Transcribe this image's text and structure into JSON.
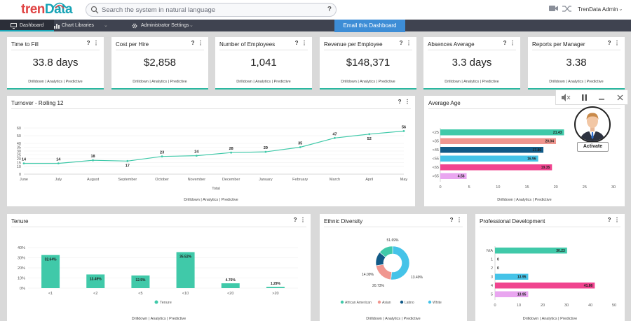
{
  "header": {
    "logo_prefix": "tren",
    "logo_suffix": "Data",
    "search_placeholder": "Search the system in natural language",
    "search_help": "?",
    "user": "TrenData Admin"
  },
  "nav": {
    "items": [
      {
        "label": "Dashboard"
      },
      {
        "label": "Chart Libraries"
      },
      {
        "label": "Administrator Settings"
      }
    ],
    "email_button": "Email this Dashboard"
  },
  "links": {
    "a": "Drilldown",
    "b": "Analytics",
    "c": "Predictive",
    "sep": "|"
  },
  "kpis": [
    {
      "title": "Time to Fill",
      "value": "33.8 days"
    },
    {
      "title": "Cost per Hire",
      "value": "$2,858"
    },
    {
      "title": "Number of Employees",
      "value": "1,041"
    },
    {
      "title": "Revenue per Employee",
      "value": "$148,371"
    },
    {
      "title": "Absences Average",
      "value": "3.3 days"
    },
    {
      "title": "Reports per Manager",
      "value": "3.38"
    }
  ],
  "card_help": "?",
  "card_menu": "⋮",
  "colors": {
    "teal": "#40c9a9",
    "pink": "#f0448f",
    "salmon": "#f0968f",
    "navy": "#115a87",
    "sky": "#45c3e8",
    "lilac": "#e9a6f0",
    "nav_bg": "#3f4350",
    "accent_blue": "#3d8dd6"
  },
  "charts": {
    "turnover": {
      "title": "Turnover - Rolling 12",
      "chart_data": {
        "type": "line",
        "categories": [
          "June",
          "July",
          "August",
          "September",
          "October",
          "November",
          "December",
          "January",
          "February",
          "March",
          "April",
          "May"
        ],
        "values": [
          14,
          14,
          18,
          17,
          23,
          24,
          28,
          29,
          35,
          47,
          52,
          56
        ],
        "legend": "Total",
        "ylim": [
          0,
          60
        ],
        "yticks": [
          0,
          10,
          15,
          20,
          25,
          30,
          35,
          40,
          50,
          60
        ],
        "color": "#40c9a9"
      }
    },
    "average_age": {
      "title": "Average Age",
      "chart_data": {
        "type": "bar",
        "orientation": "horizontal",
        "categories": [
          "<25",
          "<35",
          "<45",
          "<55",
          "<65",
          ">65"
        ],
        "values": [
          21.43,
          20.04,
          17.86,
          16.96,
          19.35,
          4.56
        ],
        "labels": [
          "21.43",
          "20.04",
          "17.86",
          "16.96",
          "19.35",
          "4.56"
        ],
        "colors": [
          "#40c9a9",
          "#f0968f",
          "#115a87",
          "#45c3e8",
          "#f0448f",
          "#e9a6f0"
        ],
        "xlim": [
          0,
          30
        ],
        "xticks": [
          0,
          5,
          10,
          15,
          20,
          25,
          30
        ]
      }
    },
    "tenure": {
      "title": "Tenure",
      "chart_data": {
        "type": "bar",
        "categories": [
          "<1",
          "<2",
          "<5",
          "<10",
          "<20",
          ">20"
        ],
        "values": [
          32.64,
          13.49,
          12.5,
          35.52,
          4.76,
          1.29
        ],
        "labels": [
          "32.64%",
          "13.49%",
          "12.5%",
          "35.52%",
          "4.76%",
          "1.29%"
        ],
        "yticks": [
          "0%",
          "10%",
          "20%",
          "30%",
          "40%"
        ],
        "ylim": [
          0,
          40
        ],
        "legend": "Tenure",
        "color": "#40c9a9"
      }
    },
    "ethnic": {
      "title": "Ethnic Diversity",
      "chart_data": {
        "type": "pie",
        "donut": true,
        "slices": [
          {
            "name": "African American",
            "value": 51.69,
            "label": "51.69%",
            "color": "#45c3e8"
          },
          {
            "name": "Asian",
            "value": 20.73,
            "label": "20.73%",
            "color": "#f0968f"
          },
          {
            "name": "Latino",
            "value": 13.49,
            "label": "13.49%",
            "color": "#115a87"
          },
          {
            "name": "White",
            "value": 14.09,
            "label": "14.09%",
            "color": "#40c9a9"
          }
        ],
        "legend": [
          {
            "name": "African American",
            "color": "#40c9a9"
          },
          {
            "name": "Asian",
            "color": "#f0968f"
          },
          {
            "name": "Latino",
            "color": "#115a87"
          },
          {
            "name": "White",
            "color": "#45c3e8"
          }
        ]
      }
    },
    "professional": {
      "title": "Professional Development",
      "chart_data": {
        "type": "bar",
        "orientation": "horizontal",
        "categories": [
          "N/A",
          "1",
          "2",
          "3",
          "4",
          "5"
        ],
        "values": [
          30.23,
          0,
          0,
          13.95,
          41.86,
          13.95
        ],
        "labels": [
          "30.23",
          "0",
          "0",
          "13.95",
          "41.86",
          "13.95"
        ],
        "colors": [
          "#40c9a9",
          "#f0968f",
          "#115a87",
          "#45c3e8",
          "#f0448f",
          "#e9a6f0"
        ],
        "xlim": [
          0,
          50
        ],
        "xticks": [
          0,
          10,
          20,
          30,
          40,
          50
        ]
      }
    }
  },
  "assistant": {
    "activate": "Activate"
  }
}
